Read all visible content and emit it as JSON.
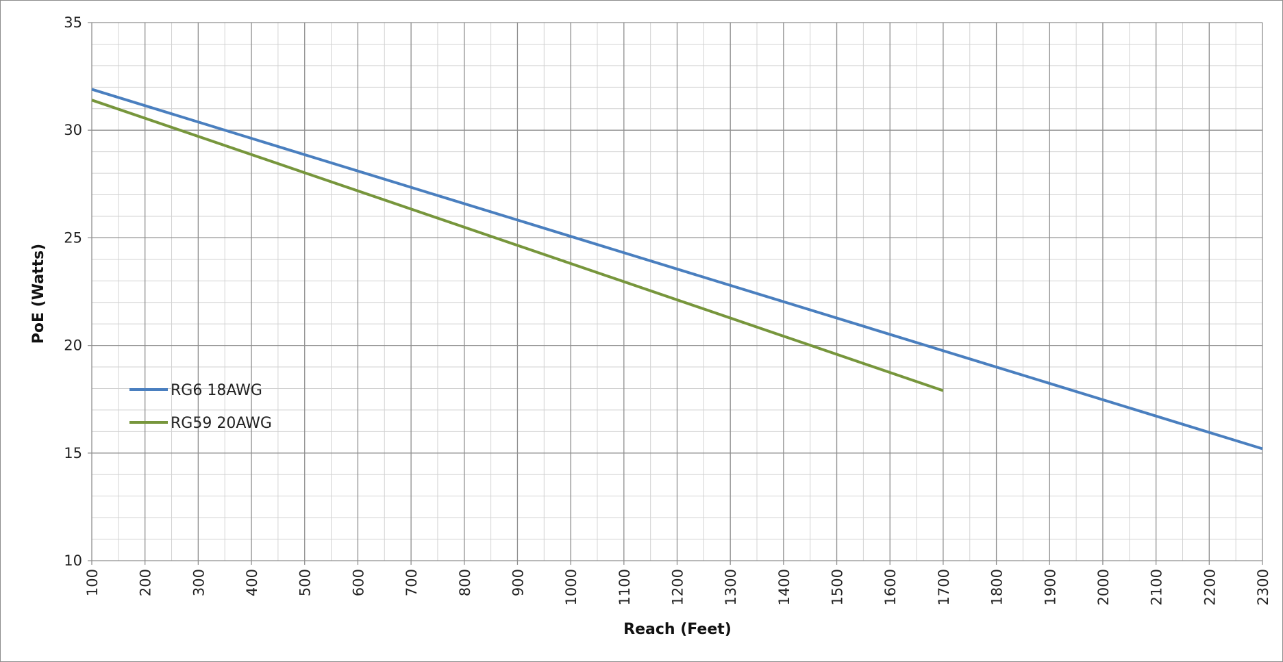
{
  "chart_data": {
    "type": "line",
    "title": "",
    "xlabel": "Reach (Feet)",
    "ylabel": "PoE (Watts)",
    "xlim": [
      100,
      2300
    ],
    "ylim": [
      10,
      35
    ],
    "x_ticks": [
      "100",
      "200",
      "300",
      "400",
      "500",
      "600",
      "700",
      "800",
      "900",
      "1000",
      "1100",
      "1200",
      "1300",
      "1400",
      "1500",
      "1600",
      "1700",
      "1800",
      "1900",
      "2000",
      "2100",
      "2200",
      "2300"
    ],
    "y_ticks": [
      "10",
      "15",
      "20",
      "25",
      "30",
      "35"
    ],
    "x_minor_step": 50,
    "y_minor_step": 1,
    "grid": true,
    "legend_position": "middle-left",
    "series": [
      {
        "name": "RG6 18AWG",
        "color": "#4a7fbf",
        "x": [
          100,
          2300
        ],
        "y": [
          31.9,
          15.2
        ]
      },
      {
        "name": "RG59 20AWG",
        "color": "#77963c",
        "x": [
          100,
          1700
        ],
        "y": [
          31.4,
          17.9
        ]
      }
    ]
  }
}
